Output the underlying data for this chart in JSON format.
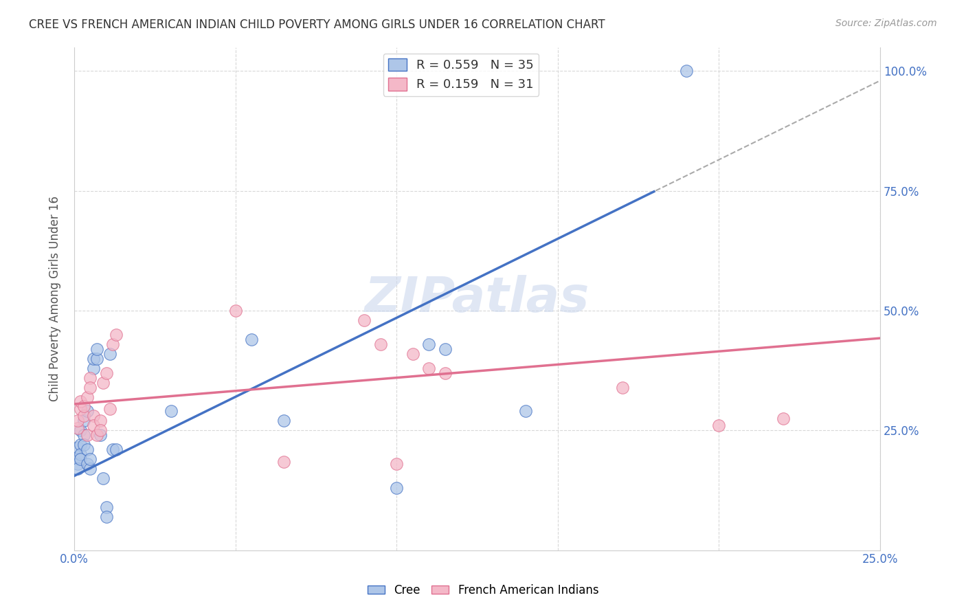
{
  "title": "CREE VS FRENCH AMERICAN INDIAN CHILD POVERTY AMONG GIRLS UNDER 16 CORRELATION CHART",
  "source": "Source: ZipAtlas.com",
  "ylabel": "Child Poverty Among Girls Under 16",
  "xlim": [
    0.0,
    0.25
  ],
  "ylim": [
    0.0,
    1.05
  ],
  "xticks": [
    0.0,
    0.05,
    0.1,
    0.15,
    0.2,
    0.25
  ],
  "yticks": [
    0.0,
    0.25,
    0.5,
    0.75,
    1.0
  ],
  "cree_R": 0.559,
  "cree_N": 35,
  "french_R": 0.159,
  "french_N": 31,
  "cree_color": "#aec6e8",
  "french_color": "#f4b8c8",
  "cree_line_color": "#4472c4",
  "french_line_color": "#e07090",
  "cree_x": [
    0.001,
    0.001,
    0.001,
    0.001,
    0.002,
    0.002,
    0.002,
    0.002,
    0.003,
    0.003,
    0.003,
    0.004,
    0.004,
    0.004,
    0.005,
    0.005,
    0.006,
    0.006,
    0.007,
    0.007,
    0.008,
    0.009,
    0.01,
    0.01,
    0.011,
    0.012,
    0.013,
    0.03,
    0.055,
    0.065,
    0.1,
    0.11,
    0.115,
    0.14,
    0.19
  ],
  "cree_y": [
    0.195,
    0.215,
    0.18,
    0.17,
    0.25,
    0.22,
    0.2,
    0.19,
    0.27,
    0.24,
    0.22,
    0.29,
    0.21,
    0.18,
    0.17,
    0.19,
    0.38,
    0.4,
    0.4,
    0.42,
    0.24,
    0.15,
    0.09,
    0.07,
    0.41,
    0.21,
    0.21,
    0.29,
    0.44,
    0.27,
    0.13,
    0.43,
    0.42,
    0.29,
    1.0
  ],
  "french_x": [
    0.001,
    0.001,
    0.002,
    0.002,
    0.003,
    0.003,
    0.004,
    0.004,
    0.005,
    0.005,
    0.006,
    0.006,
    0.007,
    0.008,
    0.008,
    0.009,
    0.01,
    0.011,
    0.012,
    0.013,
    0.05,
    0.065,
    0.09,
    0.095,
    0.1,
    0.105,
    0.11,
    0.115,
    0.17,
    0.2,
    0.22
  ],
  "french_y": [
    0.255,
    0.27,
    0.295,
    0.31,
    0.28,
    0.3,
    0.32,
    0.24,
    0.36,
    0.34,
    0.28,
    0.26,
    0.24,
    0.27,
    0.25,
    0.35,
    0.37,
    0.295,
    0.43,
    0.45,
    0.5,
    0.185,
    0.48,
    0.43,
    0.18,
    0.41,
    0.38,
    0.37,
    0.34,
    0.26,
    0.275
  ],
  "cree_line_slope": 3.3,
  "cree_line_intercept": 0.155,
  "french_line_slope": 0.55,
  "french_line_intercept": 0.305,
  "background_color": "#ffffff",
  "grid_color": "#d8d8d8"
}
